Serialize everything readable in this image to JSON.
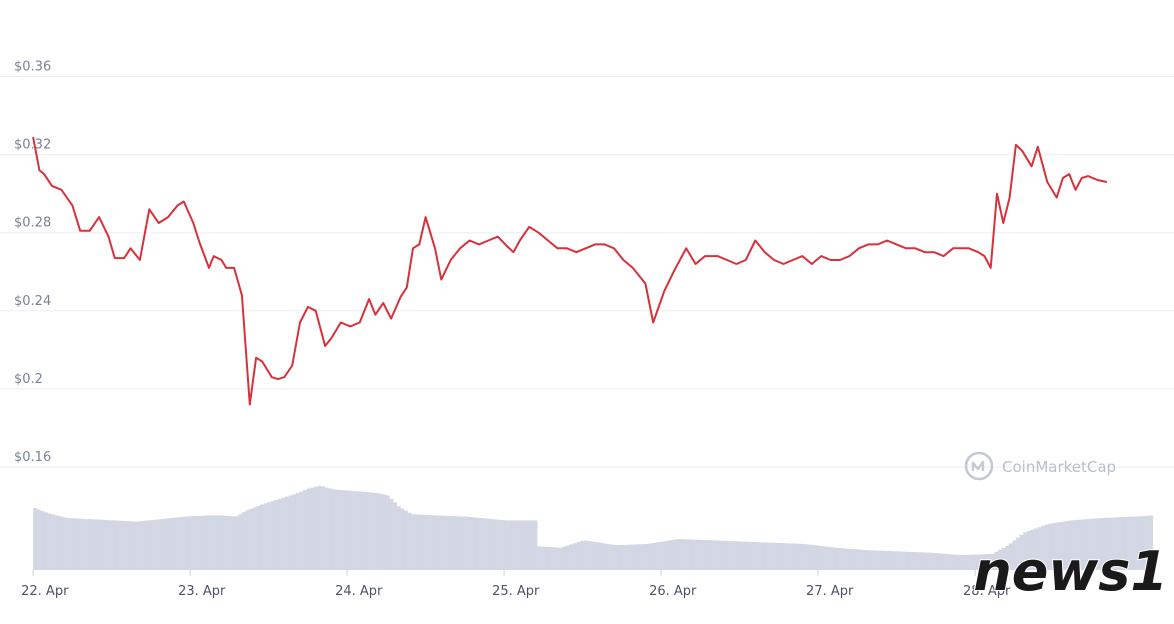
{
  "chart_data": {
    "type": "line",
    "title": "",
    "xlabel": "",
    "ylabel": "",
    "ylim": [
      0.16,
      0.37
    ],
    "y_ticks": [
      "$0.36",
      "$0.32",
      "$0.28",
      "$0.24",
      "$0.2",
      "$0.16"
    ],
    "y_tick_values": [
      0.36,
      0.32,
      0.28,
      0.24,
      0.2,
      0.16
    ],
    "x_ticks": [
      "22. Apr",
      "23. Apr",
      "24. Apr",
      "25. Apr",
      "26. Apr",
      "27. Apr",
      "28. Apr"
    ],
    "x_tick_days": [
      0,
      1,
      2,
      3,
      4,
      5,
      6
    ],
    "xlim_days": [
      -0.02,
      7.14
    ],
    "grid": true,
    "series": [
      {
        "kind": "price",
        "color": "#d6323b",
        "x_days": [
          0.0,
          0.04,
          0.07,
          0.12,
          0.18,
          0.25,
          0.3,
          0.36,
          0.42,
          0.48,
          0.52,
          0.58,
          0.62,
          0.68,
          0.74,
          0.8,
          0.86,
          0.92,
          0.96,
          1.02,
          1.06,
          1.12,
          1.15,
          1.2,
          1.23,
          1.28,
          1.33,
          1.38,
          1.42,
          1.46,
          1.52,
          1.56,
          1.6,
          1.65,
          1.7,
          1.75,
          1.8,
          1.86,
          1.9,
          1.96,
          2.02,
          2.08,
          2.14,
          2.18,
          2.23,
          2.28,
          2.34,
          2.38,
          2.42,
          2.46,
          2.5,
          2.56,
          2.6,
          2.66,
          2.72,
          2.78,
          2.84,
          2.9,
          2.96,
          3.02,
          3.06,
          3.1,
          3.16,
          3.22,
          3.28,
          3.34,
          3.4,
          3.46,
          3.52,
          3.58,
          3.64,
          3.7,
          3.76,
          3.82,
          3.86,
          3.9,
          3.95,
          4.02,
          4.08,
          4.16,
          4.22,
          4.28,
          4.36,
          4.42,
          4.48,
          4.54,
          4.6,
          4.66,
          4.72,
          4.78,
          4.84,
          4.9,
          4.96,
          5.02,
          5.08,
          5.14,
          5.2,
          5.26,
          5.32,
          5.38,
          5.44,
          5.5,
          5.56,
          5.62,
          5.68,
          5.74,
          5.8,
          5.86,
          5.9,
          5.96,
          6.02,
          6.06,
          6.1,
          6.14,
          6.18,
          6.22,
          6.26,
          6.3,
          6.36,
          6.4,
          6.46,
          6.52,
          6.56,
          6.6,
          6.64,
          6.68,
          6.72,
          6.78,
          6.84
        ],
        "values": [
          0.329,
          0.312,
          0.31,
          0.304,
          0.302,
          0.294,
          0.281,
          0.281,
          0.288,
          0.278,
          0.267,
          0.267,
          0.272,
          0.266,
          0.292,
          0.285,
          0.288,
          0.294,
          0.296,
          0.285,
          0.275,
          0.262,
          0.268,
          0.266,
          0.262,
          0.262,
          0.248,
          0.192,
          0.216,
          0.214,
          0.206,
          0.205,
          0.206,
          0.212,
          0.234,
          0.242,
          0.24,
          0.222,
          0.226,
          0.234,
          0.232,
          0.234,
          0.246,
          0.238,
          0.244,
          0.236,
          0.247,
          0.252,
          0.272,
          0.274,
          0.288,
          0.272,
          0.256,
          0.266,
          0.272,
          0.276,
          0.274,
          0.276,
          0.278,
          0.273,
          0.27,
          0.276,
          0.283,
          0.28,
          0.276,
          0.272,
          0.272,
          0.27,
          0.272,
          0.274,
          0.274,
          0.272,
          0.266,
          0.262,
          0.258,
          0.254,
          0.234,
          0.25,
          0.26,
          0.272,
          0.264,
          0.268,
          0.268,
          0.266,
          0.264,
          0.266,
          0.276,
          0.27,
          0.266,
          0.264,
          0.266,
          0.268,
          0.264,
          0.268,
          0.266,
          0.266,
          0.268,
          0.272,
          0.274,
          0.274,
          0.276,
          0.274,
          0.272,
          0.272,
          0.27,
          0.27,
          0.268,
          0.272,
          0.272,
          0.272,
          0.27,
          0.268,
          0.262,
          0.3,
          0.285,
          0.298,
          0.325,
          0.322,
          0.314,
          0.324,
          0.306,
          0.298,
          0.308,
          0.31,
          0.302,
          0.308,
          0.309,
          0.307,
          0.306
        ]
      },
      {
        "kind": "volume",
        "color": "#d2d7e3",
        "x_days": [
          0.0,
          0.08,
          0.2,
          0.35,
          0.5,
          0.65,
          0.8,
          0.95,
          1.1,
          1.2,
          1.28,
          1.35,
          1.45,
          1.55,
          1.65,
          1.75,
          1.82,
          1.9,
          2.0,
          2.1,
          2.18,
          2.25,
          2.32,
          2.4,
          2.55,
          2.75,
          3.0,
          3.2,
          3.21,
          3.35,
          3.5,
          3.7,
          3.9,
          4.1,
          4.3,
          4.5,
          4.7,
          4.9,
          5.1,
          5.3,
          5.5,
          5.7,
          5.9,
          6.1,
          6.2,
          6.3,
          6.45,
          6.6,
          6.8,
          7.0,
          7.12
        ],
        "values": [
          100,
          92,
          84,
          82,
          80,
          78,
          82,
          86,
          88,
          88,
          86,
          96,
          106,
          114,
          122,
          132,
          136,
          130,
          128,
          126,
          124,
          120,
          102,
          90,
          88,
          86,
          80,
          80,
          38,
          36,
          48,
          40,
          42,
          50,
          48,
          46,
          44,
          42,
          36,
          32,
          30,
          28,
          24,
          26,
          40,
          60,
          74,
          80,
          84,
          86,
          88
        ]
      }
    ]
  },
  "watermark": {
    "text": "CoinMarketCap",
    "icon": "coinmarketcap-logo-icon",
    "color": "#b9bfcb"
  },
  "source_logo": {
    "text": "news1",
    "icon": "news1-logo-icon"
  }
}
